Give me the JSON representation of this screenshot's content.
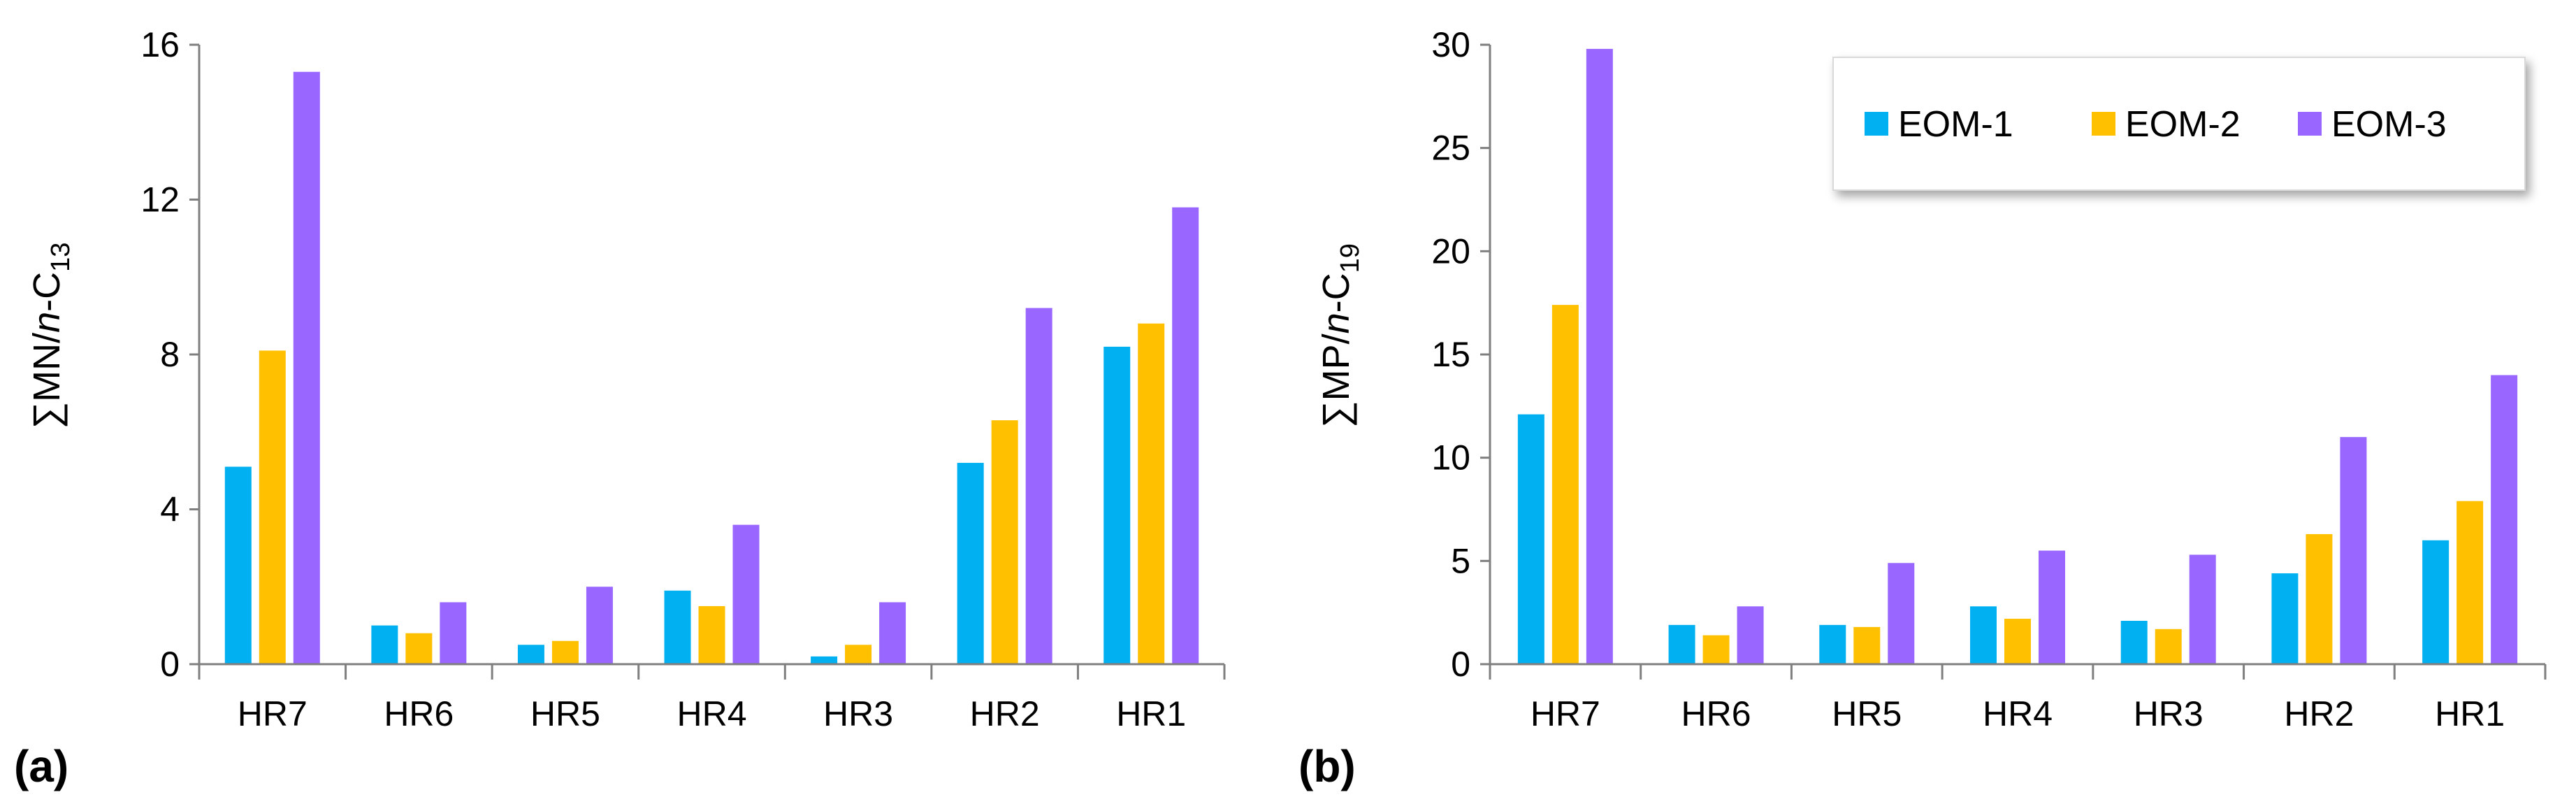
{
  "figure": {
    "panel_labels": [
      "(a)",
      "(b)"
    ]
  },
  "chart_data": [
    {
      "type": "bar",
      "panel": "(a)",
      "title": "",
      "ylabel": {
        "prefix": "∑MN/",
        "italic": "n",
        "mid": "-C",
        "sub": "13"
      },
      "categories": [
        "HR7",
        "HR6",
        "HR5",
        "HR4",
        "HR3",
        "HR2",
        "HR1"
      ],
      "ylim": [
        0,
        16
      ],
      "yticks": [
        0,
        4,
        8,
        12,
        16
      ],
      "grid": false,
      "legend": null,
      "series": [
        {
          "name": "EOM-1",
          "color": "#00B0F0",
          "values": [
            5.1,
            1.0,
            0.5,
            1.9,
            0.2,
            5.2,
            8.2
          ]
        },
        {
          "name": "EOM-2",
          "color": "#FFC000",
          "values": [
            8.1,
            0.8,
            0.6,
            1.5,
            0.5,
            6.3,
            8.8
          ]
        },
        {
          "name": "EOM-3",
          "color": "#9966FF",
          "values": [
            15.3,
            1.6,
            2.0,
            3.6,
            1.6,
            9.2,
            11.8
          ]
        }
      ]
    },
    {
      "type": "bar",
      "panel": "(b)",
      "title": "",
      "ylabel": {
        "prefix": "∑MP/",
        "italic": "n",
        "mid": "-C",
        "sub": "19"
      },
      "categories": [
        "HR7",
        "HR6",
        "HR5",
        "HR4",
        "HR3",
        "HR2",
        "HR1"
      ],
      "ylim": [
        0,
        30
      ],
      "yticks": [
        0,
        5,
        10,
        15,
        20,
        25,
        30
      ],
      "grid": false,
      "legend": {
        "position": "top-right",
        "entries": [
          "EOM-1",
          "EOM-2",
          "EOM-3"
        ]
      },
      "series": [
        {
          "name": "EOM-1",
          "color": "#00B0F0",
          "values": [
            12.1,
            1.9,
            1.9,
            2.8,
            2.1,
            4.4,
            6.0
          ]
        },
        {
          "name": "EOM-2",
          "color": "#FFC000",
          "values": [
            17.4,
            1.4,
            1.8,
            2.2,
            1.7,
            6.3,
            7.9
          ]
        },
        {
          "name": "EOM-3",
          "color": "#9966FF",
          "values": [
            29.8,
            2.8,
            4.9,
            5.5,
            5.3,
            11.0,
            14.0
          ]
        }
      ]
    }
  ]
}
